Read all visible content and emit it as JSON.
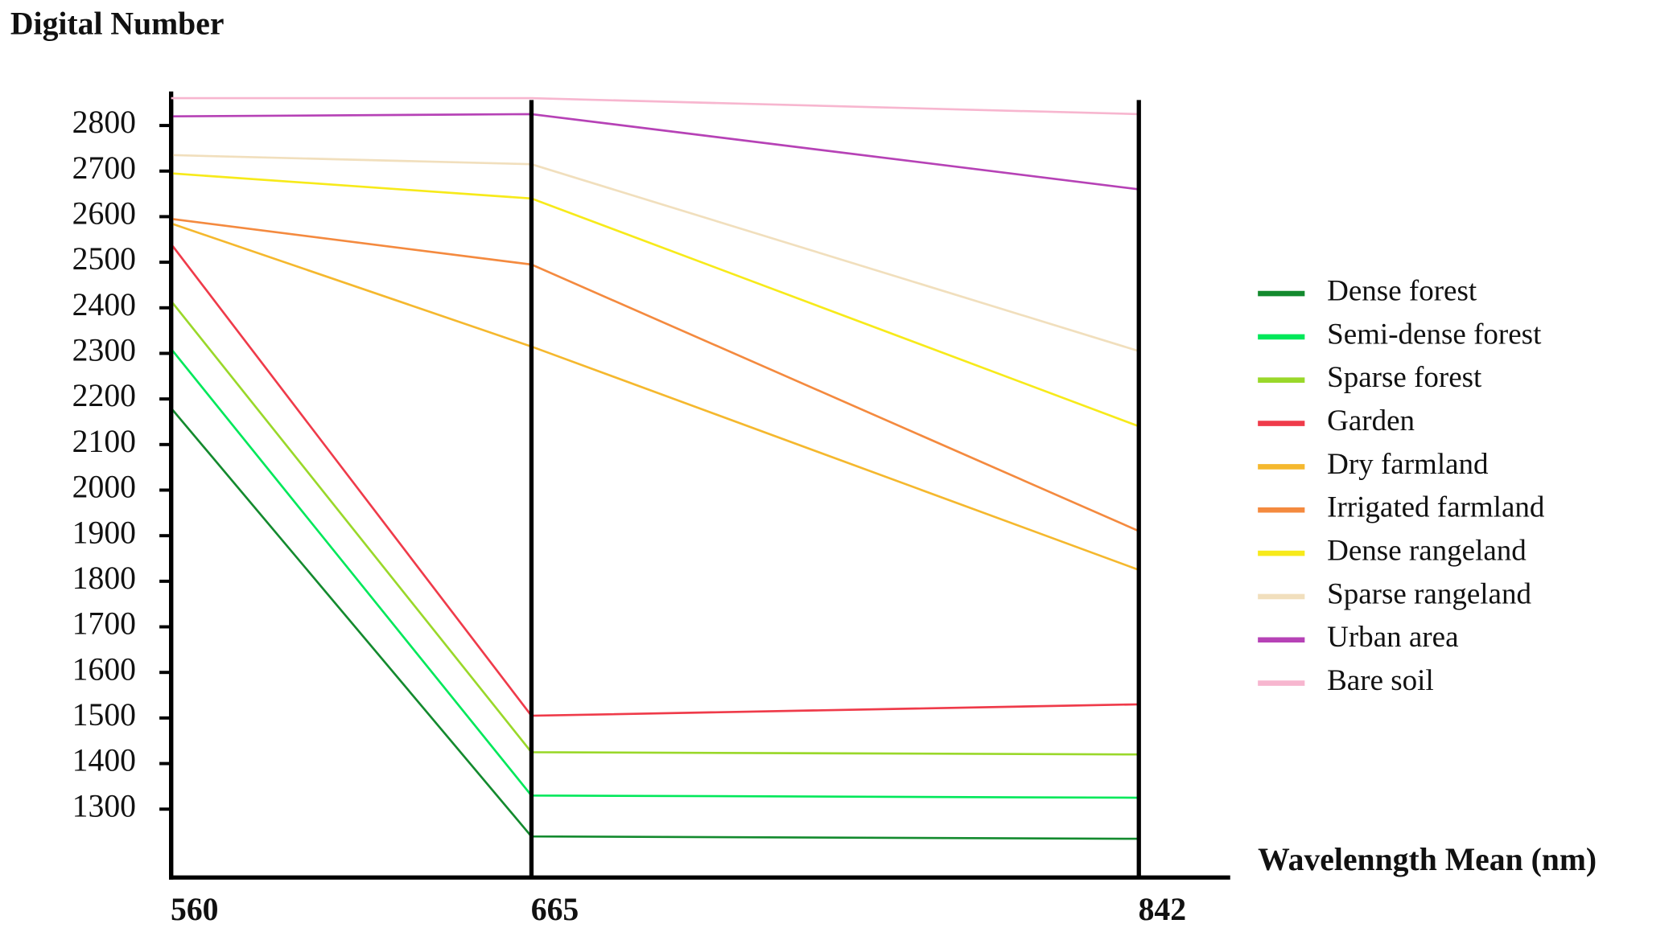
{
  "chart_data": {
    "type": "line",
    "y_label": "Digital Number",
    "x_label": "Wavelenngth Mean (nm)",
    "x": [
      560,
      665,
      842
    ],
    "xlim": [
      560,
      868
    ],
    "xticks": [
      560,
      665,
      842
    ],
    "ylim": [
      1150,
      2870
    ],
    "yticks": [
      1300,
      1400,
      1500,
      1600,
      1700,
      1800,
      1900,
      2000,
      2100,
      2200,
      2300,
      2400,
      2500,
      2600,
      2700,
      2800
    ],
    "vertical_grid": true,
    "legend": "right",
    "series": [
      {
        "name": "Dense forest",
        "color": "#138a2e",
        "values": [
          2180,
          1240,
          1235
        ]
      },
      {
        "name": "Semi-dense forest",
        "color": "#00e85a",
        "values": [
          2310,
          1330,
          1325
        ]
      },
      {
        "name": "Sparse forest",
        "color": "#9ad82a",
        "values": [
          2415,
          1425,
          1420
        ]
      },
      {
        "name": "Garden",
        "color": "#ef3b4a",
        "values": [
          2540,
          1505,
          1530
        ]
      },
      {
        "name": "Dry farmland",
        "color": "#f5b82e",
        "values": [
          2585,
          2315,
          1825
        ]
      },
      {
        "name": "Irrigated farmland",
        "color": "#f48a3f",
        "values": [
          2595,
          2495,
          1910
        ]
      },
      {
        "name": "Dense rangeland",
        "color": "#f7ea1a",
        "values": [
          2695,
          2640,
          2140
        ]
      },
      {
        "name": "Sparse rangeland",
        "color": "#f1dfbd",
        "values": [
          2735,
          2715,
          2305
        ]
      },
      {
        "name": "Urban area",
        "color": "#b642b6",
        "values": [
          2820,
          2825,
          2660
        ]
      },
      {
        "name": "Bare soil",
        "color": "#f7b6cf",
        "values": [
          2860,
          2860,
          2825
        ]
      }
    ]
  }
}
